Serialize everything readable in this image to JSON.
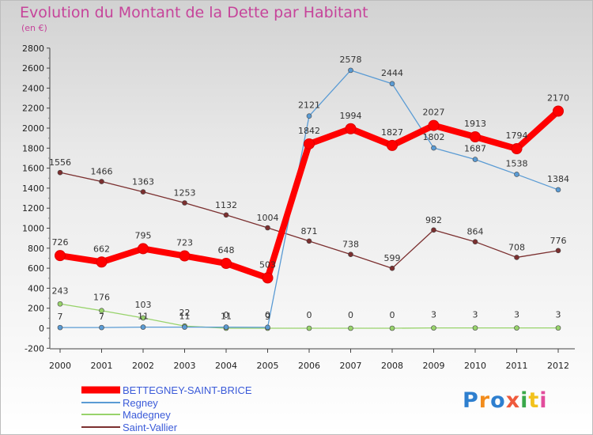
{
  "title": "Evolution du Montant de la Dette par Habitant",
  "subtitle": "(en €)",
  "logo": "Proxiti",
  "colors": {
    "bettegney": "#ff0000",
    "regney": "#5a9bd4",
    "madegney": "#98d36b",
    "saint_vallier": "#7b2f2f",
    "title": "#c6449a"
  },
  "chart_data": {
    "type": "line",
    "title": "Evolution du Montant de la Dette par Habitant",
    "subtitle": "(en €)",
    "xlabel": "",
    "ylabel": "",
    "x": [
      "2000",
      "2001",
      "2002",
      "2003",
      "2004",
      "2005",
      "2006",
      "2007",
      "2008",
      "2009",
      "2010",
      "2011",
      "2012"
    ],
    "ylim": [
      -200,
      2800
    ],
    "yticks": [
      "-200",
      "0",
      "200",
      "400",
      "600",
      "800",
      "1000",
      "1200",
      "1400",
      "1600",
      "1800",
      "2000",
      "2200",
      "2400",
      "2600",
      "2800"
    ],
    "grid": false,
    "legend_position": "bottom-left",
    "series": [
      {
        "name": "BETTEGNEY-SAINT-BRICE",
        "color": "#ff0000",
        "values": [
          726,
          662,
          795,
          723,
          648,
          503,
          1842,
          1994,
          1827,
          2027,
          1913,
          1794,
          2170
        ],
        "labels": [
          "726",
          "662",
          "795",
          "723",
          "648",
          "503",
          "1842",
          "1994",
          "1827",
          "2027",
          "1913",
          "1794",
          "2170"
        ]
      },
      {
        "name": "Regney",
        "color": "#5a9bd4",
        "values": [
          7,
          7,
          11,
          11,
          11,
          9,
          2121,
          2578,
          2444,
          1802,
          1687,
          1538,
          1384
        ],
        "labels": [
          "7",
          "7",
          "11",
          "11",
          "11",
          "9",
          "2121",
          "2578",
          "2444",
          "1802",
          "1687",
          "1538",
          "1384"
        ]
      },
      {
        "name": "Madegney",
        "color": "#98d36b",
        "values": [
          243,
          176,
          103,
          22,
          0,
          0,
          0,
          0,
          0,
          3,
          3,
          3,
          3
        ],
        "labels": [
          "243",
          "176",
          "103",
          "22",
          "0",
          "0",
          "0",
          "0",
          "0",
          "3",
          "3",
          "3",
          "3"
        ]
      },
      {
        "name": "Saint-Vallier",
        "color": "#7b2f2f",
        "values": [
          1556,
          1466,
          1363,
          1253,
          1132,
          1004,
          871,
          738,
          599,
          982,
          864,
          708,
          776
        ],
        "labels": [
          "1556",
          "1466",
          "1363",
          "1253",
          "1132",
          "1004",
          "871",
          "738",
          "599",
          "982",
          "864",
          "708",
          "776"
        ]
      }
    ]
  }
}
